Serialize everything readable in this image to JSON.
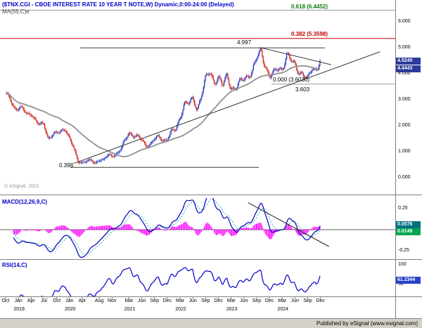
{
  "header": {
    "title": "($TNX.CGI - CBOE INTEREST RATE 10 YEAR T NOTE,W) Dynamic,0:00-24:00 (Delayed)",
    "ma_label": "MA(55,C)e",
    "copyright": "© eSignal, 2021"
  },
  "footer": {
    "published": "Published by eSignal (www.esignal.com)"
  },
  "colors": {
    "title": "#0000cc",
    "candle_up": "#2e3bbf",
    "candle_down": "#d42a20",
    "ma_line": "#909090",
    "trendline": "#3a3a3a",
    "fib_line": "#999999",
    "fib_382_line": "#c00000",
    "fib_618_label": "#0a7a0a",
    "fib_382_label": "#c00000",
    "macd_hist": "#ff00ff",
    "macd_line": "#0000bb",
    "macd_signal": "#00a0a0",
    "rsi_line": "#0000cc",
    "badge_price_bg": "#2b3a9a",
    "badge_macd_bg": "#00707e",
    "badge_signal_bg": "#00a651",
    "badge_rsi_bg": "#2440c8"
  },
  "chart_data": [
    {
      "type": "candlestick",
      "symbol": "$TNX.CGI",
      "description": "CBOE INTEREST RATE 10 YEAR T NOTE",
      "timeframe": "Weekly",
      "session": "Dynamic,0:00-24:00 (Delayed)",
      "x_range": [
        "Oct 2018",
        "Dec 2024"
      ],
      "ylim": [
        0,
        6.57
      ],
      "y_ticks": [
        "6.000",
        "5.000",
        "4.000",
        "3.000",
        "2.000",
        "1.000",
        "0.000"
      ],
      "ma_period": 55,
      "last_price": "4.5240",
      "ma_value": "4.4443",
      "monthly_closes": [
        3.16,
        3.05,
        2.69,
        2.7,
        2.63,
        2.41,
        2.51,
        2.21,
        2.01,
        2.06,
        1.51,
        1.67,
        1.69,
        1.78,
        1.92,
        1.51,
        1.13,
        0.62,
        0.6,
        0.64,
        0.66,
        0.55,
        0.71,
        0.68,
        0.86,
        0.84,
        0.92,
        1.07,
        1.41,
        1.74,
        1.63,
        1.59,
        1.44,
        1.23,
        1.3,
        1.49,
        1.56,
        1.43,
        1.51,
        1.78,
        1.83,
        2.33,
        2.89,
        2.84,
        3.01,
        2.64,
        3.19,
        3.8,
        4.05,
        3.7,
        3.88,
        3.51,
        3.92,
        3.48,
        3.43,
        3.64,
        3.82,
        3.96,
        4.1,
        4.57,
        4.9,
        4.35,
        3.87,
        3.99,
        4.25,
        4.2,
        4.68,
        4.5,
        4.37,
        4.1,
        3.91,
        3.75,
        4.28,
        4.17,
        4.52
      ],
      "pivots": {
        "high": "4.997",
        "low": "0.398",
        "recent_low": "3.603"
      },
      "fib_levels": [
        {
          "label": "0.618 (6.4452)",
          "value": 6.4452
        },
        {
          "label": "0.382 (5.3598)",
          "value": 5.3598
        },
        {
          "label": "0.000 (3.6030)",
          "value": 3.603
        }
      ],
      "trendlines": [
        {
          "name": "resistance-4997",
          "pts": [
            17.5,
            4.997,
            75,
            4.997
          ]
        },
        {
          "name": "support-0398",
          "pts": [
            15.2,
            0.398,
            59.5,
            0.398
          ]
        },
        {
          "name": "ascending-support",
          "pts": [
            16,
            0.55,
            88,
            4.85
          ]
        },
        {
          "name": "descending-from-peak",
          "pts": [
            60,
            5.0,
            76.5,
            4.35
          ]
        }
      ],
      "x_axis_months": [
        {
          "t": "Oct",
          "m": 0
        },
        {
          "t": "Jan",
          "m": 3
        },
        {
          "t": "Apr",
          "m": 6
        },
        {
          "t": "Jul",
          "m": 9
        },
        {
          "t": "Oct",
          "m": 12
        },
        {
          "t": "Jan",
          "m": 15
        },
        {
          "t": "Apr",
          "m": 18
        },
        {
          "t": "Aug",
          "m": 22
        },
        {
          "t": "Nov",
          "m": 25
        },
        {
          "t": "Mar",
          "m": 29
        },
        {
          "t": "Jun",
          "m": 32
        },
        {
          "t": "Sep",
          "m": 35
        },
        {
          "t": "Dec",
          "m": 38
        },
        {
          "t": "Mar",
          "m": 41
        },
        {
          "t": "Jun",
          "m": 44
        },
        {
          "t": "Sep",
          "m": 47
        },
        {
          "t": "Dec",
          "m": 50
        },
        {
          "t": "Mar",
          "m": 53
        },
        {
          "t": "Jun",
          "m": 56
        },
        {
          "t": "Sep",
          "m": 59
        },
        {
          "t": "Dec",
          "m": 62
        },
        {
          "t": "Mar",
          "m": 65
        },
        {
          "t": "Jun",
          "m": 68
        },
        {
          "t": "Sep",
          "m": 71
        },
        {
          "t": "Dec",
          "m": 74
        }
      ],
      "x_axis_years": [
        {
          "t": "2019",
          "m": 3
        },
        {
          "t": "2020",
          "m": 15
        },
        {
          "t": "2021",
          "m": 29
        },
        {
          "t": "2022",
          "m": 41
        },
        {
          "t": "2023",
          "m": 53
        },
        {
          "t": "2024",
          "m": 65
        }
      ]
    },
    {
      "type": "macd",
      "label": "MACD(12,26,9,C)",
      "params": [
        12,
        26,
        9
      ],
      "y_ticks": [
        "0.25",
        "-0.25"
      ],
      "value": "0.0576",
      "signal_value": "0.0149",
      "trendline_pts": [
        57,
        0.32,
        76,
        -0.2
      ]
    },
    {
      "type": "line",
      "label": "RSI(14,C)",
      "period": 14,
      "y_ticks": [
        "100",
        "50"
      ],
      "value": "61.2344"
    }
  ]
}
